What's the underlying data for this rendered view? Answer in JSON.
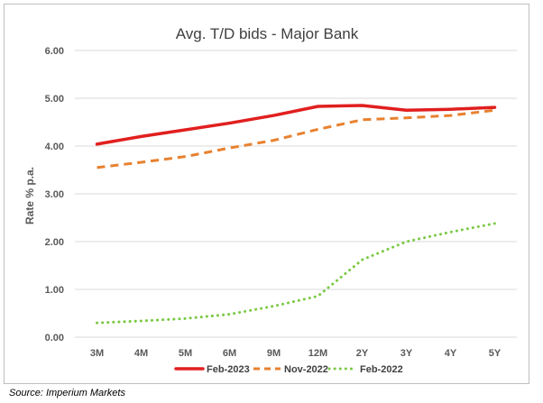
{
  "chart_data": {
    "type": "line",
    "title": "Avg. T/D bids - Major Bank",
    "xlabel": "",
    "ylabel": "Rate % p.a.",
    "categories": [
      "3M",
      "4M",
      "5M",
      "6M",
      "9M",
      "12M",
      "2Y",
      "3Y",
      "4Y",
      "5Y"
    ],
    "ylim": [
      0,
      6
    ],
    "yticks": [
      "0.00",
      "1.00",
      "2.00",
      "3.00",
      "4.00",
      "5.00",
      "6.00"
    ],
    "grid": true,
    "legend_position": "bottom",
    "series": [
      {
        "name": "Feb-2023",
        "color": "#e11f1f",
        "style": "solid",
        "values": [
          4.04,
          4.2,
          4.34,
          4.48,
          4.64,
          4.83,
          4.85,
          4.75,
          4.77,
          4.81
        ]
      },
      {
        "name": "Nov-2022",
        "color": "#e8812f",
        "style": "dashed",
        "values": [
          3.55,
          3.66,
          3.78,
          3.96,
          4.12,
          4.35,
          4.55,
          4.59,
          4.64,
          4.75
        ]
      },
      {
        "name": "Feb-2022",
        "color": "#7ac943",
        "style": "dotted",
        "values": [
          0.3,
          0.34,
          0.39,
          0.48,
          0.65,
          0.86,
          1.62,
          2.0,
          2.2,
          2.38
        ]
      }
    ]
  },
  "source": "Source: Imperium Markets"
}
